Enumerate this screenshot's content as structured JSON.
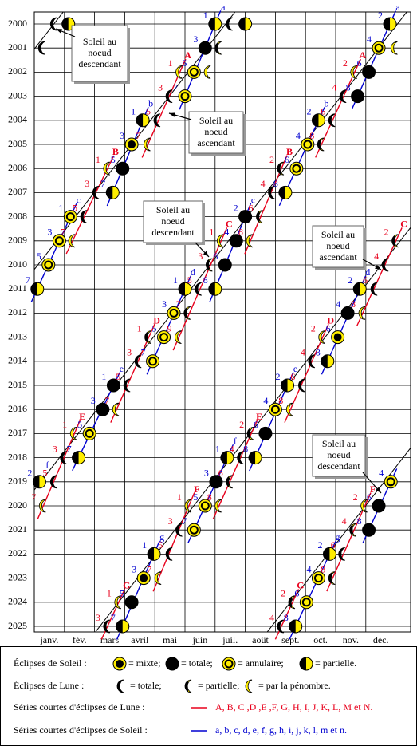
{
  "years": [
    2000,
    2001,
    2002,
    2003,
    2004,
    2005,
    2006,
    2007,
    2008,
    2009,
    2010,
    2011,
    2012,
    2013,
    2014,
    2015,
    2016,
    2017,
    2018,
    2019,
    2020,
    2021,
    2022,
    2023,
    2024,
    2025
  ],
  "months": [
    "janv.",
    "fév.",
    "mars",
    "avril",
    "mai",
    "juin",
    "juil.",
    "août",
    "sept.",
    "oct.",
    "nov.",
    "déc."
  ],
  "colors": {
    "lunar": "#e8001c",
    "solar": "#0000d0",
    "sun": "#ffee00"
  },
  "series": [
    {
      "name": "A",
      "kind": "lunar"
    },
    {
      "name": "B",
      "kind": "lunar"
    },
    {
      "name": "C",
      "kind": "lunar"
    },
    {
      "name": "D",
      "kind": "lunar"
    },
    {
      "name": "E",
      "kind": "lunar"
    },
    {
      "name": "F",
      "kind": "lunar"
    },
    {
      "name": "G",
      "kind": "lunar"
    },
    {
      "name": "a",
      "kind": "solar"
    },
    {
      "name": "b",
      "kind": "solar"
    },
    {
      "name": "c",
      "kind": "solar"
    },
    {
      "name": "d",
      "kind": "solar"
    },
    {
      "name": "e",
      "kind": "solar"
    },
    {
      "name": "f",
      "kind": "solar"
    },
    {
      "name": "g",
      "kind": "solar"
    }
  ],
  "eclipses": [
    {
      "y": 2000,
      "m": 0.67,
      "t": "L-total"
    },
    {
      "y": 2000,
      "m": 1.13,
      "t": "S-partial"
    },
    {
      "y": 2000,
      "m": 6.0,
      "t": "S-partial",
      "s": "a",
      "n": 1
    },
    {
      "y": 2000,
      "m": 6.5,
      "t": "L-total"
    },
    {
      "y": 2000,
      "m": 7.0,
      "t": "S-partial"
    },
    {
      "y": 2000,
      "m": 11.8,
      "t": "S-partial",
      "s": "a",
      "n": 2
    },
    {
      "y": 2001,
      "m": 0.27,
      "t": "L-total"
    },
    {
      "y": 2001,
      "m": 5.67,
      "t": "S-total",
      "s": "a",
      "n": 3
    },
    {
      "y": 2001,
      "m": 6.13,
      "t": "L-partial"
    },
    {
      "y": 2001,
      "m": 11.43,
      "t": "S-annular",
      "s": "a",
      "n": 4
    },
    {
      "y": 2001,
      "m": 11.97,
      "t": "L-penumbral"
    },
    {
      "y": 2002,
      "m": 4.83,
      "t": "L-penumbral",
      "s": "A",
      "n": 1
    },
    {
      "y": 2002,
      "m": 5.3,
      "t": "S-annular",
      "s": "a",
      "n": 5
    },
    {
      "y": 2002,
      "m": 5.77,
      "t": "L-penumbral"
    },
    {
      "y": 2002,
      "m": 10.63,
      "t": "L-penumbral",
      "s": "A",
      "n": 2
    },
    {
      "y": 2002,
      "m": 11.1,
      "t": "S-total",
      "s": "a",
      "n": 6
    },
    {
      "y": 2003,
      "m": 4.5,
      "t": "L-total",
      "s": "A",
      "n": 3
    },
    {
      "y": 2003,
      "m": 5.0,
      "t": "S-annular",
      "s": "a",
      "n": 7
    },
    {
      "y": 2003,
      "m": 10.27,
      "t": "L-total",
      "s": "A",
      "n": 4
    },
    {
      "y": 2003,
      "m": 10.73,
      "t": "S-total",
      "s": "a",
      "n": 8
    },
    {
      "y": 2004,
      "m": 3.6,
      "t": "S-partial",
      "s": "b",
      "n": 1
    },
    {
      "y": 2004,
      "m": 4.1,
      "t": "L-total",
      "s": "A",
      "n": 5
    },
    {
      "y": 2004,
      "m": 9.43,
      "t": "S-partial",
      "s": "b",
      "n": 2
    },
    {
      "y": 2004,
      "m": 9.9,
      "t": "L-total",
      "s": "A",
      "n": 6
    },
    {
      "y": 2005,
      "m": 3.23,
      "t": "S-hybrid",
      "s": "b",
      "n": 3
    },
    {
      "y": 2005,
      "m": 3.77,
      "t": "L-penumbral",
      "s": "A",
      "n": 7
    },
    {
      "y": 2005,
      "m": 9.07,
      "t": "S-annular",
      "s": "b",
      "n": 4
    },
    {
      "y": 2005,
      "m": 9.53,
      "t": "L-partial",
      "s": "A",
      "n": 8
    },
    {
      "y": 2006,
      "m": 2.43,
      "t": "L-penumbral",
      "s": "B",
      "n": 1
    },
    {
      "y": 2006,
      "m": 2.93,
      "t": "S-total",
      "s": "b",
      "n": 5
    },
    {
      "y": 2006,
      "m": 8.2,
      "t": "L-partial",
      "s": "B",
      "n": 2
    },
    {
      "y": 2006,
      "m": 8.7,
      "t": "S-annular",
      "s": "b",
      "n": 6
    },
    {
      "y": 2007,
      "m": 2.07,
      "t": "L-total",
      "s": "B",
      "n": 3
    },
    {
      "y": 2007,
      "m": 2.6,
      "t": "S-partial",
      "s": "b",
      "n": 7
    },
    {
      "y": 2007,
      "m": 7.9,
      "t": "L-total",
      "s": "B",
      "n": 4
    },
    {
      "y": 2007,
      "m": 8.33,
      "t": "S-partial",
      "s": "b",
      "n": 8
    },
    {
      "y": 2008,
      "m": 1.2,
      "t": "S-annular",
      "s": "c",
      "n": 1
    },
    {
      "y": 2008,
      "m": 1.67,
      "t": "L-total",
      "s": "B",
      "n": 5
    },
    {
      "y": 2008,
      "m": 7.0,
      "t": "S-total",
      "s": "c",
      "n": 2
    },
    {
      "y": 2008,
      "m": 7.5,
      "t": "L-partial",
      "s": "B",
      "n": 6
    },
    {
      "y": 2009,
      "m": 0.83,
      "t": "S-annular",
      "s": "c",
      "n": 3
    },
    {
      "y": 2009,
      "m": 1.27,
      "t": "L-penumbral",
      "s": "B",
      "n": 7
    },
    {
      "y": 2009,
      "m": 6.2,
      "t": "L-penumbral",
      "s": "C",
      "n": 1
    },
    {
      "y": 2009,
      "m": 6.7,
      "t": "S-total",
      "s": "c",
      "n": 4
    },
    {
      "y": 2009,
      "m": 7.17,
      "t": "L-penumbral",
      "s": "B",
      "n": 8
    },
    {
      "y": 2009,
      "m": 12.0,
      "t": "L-partial",
      "s": "C",
      "n": 2
    },
    {
      "y": 2010,
      "m": 0.47,
      "t": "S-annular",
      "s": "c",
      "n": 5
    },
    {
      "y": 2010,
      "m": 5.83,
      "t": "L-partial",
      "s": "C",
      "n": 3
    },
    {
      "y": 2010,
      "m": 6.33,
      "t": "S-total",
      "s": "c",
      "n": 6
    },
    {
      "y": 2010,
      "m": 11.67,
      "t": "L-total",
      "s": "C",
      "n": 4
    },
    {
      "y": 2011,
      "m": 0.1,
      "t": "S-partial",
      "s": "c",
      "n": 7
    },
    {
      "y": 2011,
      "m": 5.0,
      "t": "S-partial",
      "s": "d",
      "n": 1
    },
    {
      "y": 2011,
      "m": 5.47,
      "t": "L-total",
      "s": "C",
      "n": 5
    },
    {
      "y": 2011,
      "m": 6.0,
      "t": "S-partial",
      "s": "c",
      "n": 8
    },
    {
      "y": 2011,
      "m": 10.8,
      "t": "S-partial",
      "s": "d",
      "n": 2
    },
    {
      "y": 2011,
      "m": 11.3,
      "t": "L-total",
      "s": "C",
      "n": 6
    },
    {
      "y": 2012,
      "m": 4.63,
      "t": "S-annular",
      "s": "d",
      "n": 3
    },
    {
      "y": 2012,
      "m": 5.1,
      "t": "L-partial",
      "s": "C",
      "n": 7
    },
    {
      "y": 2012,
      "m": 10.4,
      "t": "S-total",
      "s": "d",
      "n": 4
    },
    {
      "y": 2012,
      "m": 10.9,
      "t": "L-penumbral",
      "s": "C",
      "n": 8
    },
    {
      "y": 2013,
      "m": 3.8,
      "t": "L-partial",
      "s": "D",
      "n": 1
    },
    {
      "y": 2013,
      "m": 4.3,
      "t": "S-annular",
      "s": "d",
      "n": 5
    },
    {
      "y": 2013,
      "m": 4.8,
      "t": "L-penumbral",
      "s": "C",
      "n": 9
    },
    {
      "y": 2013,
      "m": 9.57,
      "t": "L-penumbral",
      "s": "D",
      "n": 2
    },
    {
      "y": 2013,
      "m": 10.07,
      "t": "S-hybrid",
      "s": "d",
      "n": 6
    },
    {
      "y": 2014,
      "m": 3.47,
      "t": "L-total",
      "s": "D",
      "n": 3
    },
    {
      "y": 2014,
      "m": 3.93,
      "t": "S-annular",
      "s": "d",
      "n": 7
    },
    {
      "y": 2014,
      "m": 9.23,
      "t": "L-total",
      "s": "D",
      "n": 4
    },
    {
      "y": 2014,
      "m": 9.73,
      "t": "S-partial",
      "s": "d",
      "n": 8
    },
    {
      "y": 2015,
      "m": 2.63,
      "t": "S-total",
      "s": "e",
      "n": 1
    },
    {
      "y": 2015,
      "m": 3.1,
      "t": "L-total",
      "s": "D",
      "n": 5
    },
    {
      "y": 2015,
      "m": 8.4,
      "t": "S-partial",
      "s": "e",
      "n": 2
    },
    {
      "y": 2015,
      "m": 8.9,
      "t": "L-total",
      "s": "D",
      "n": 6
    },
    {
      "y": 2016,
      "m": 2.27,
      "t": "S-total",
      "s": "e",
      "n": 3
    },
    {
      "y": 2016,
      "m": 2.73,
      "t": "L-penumbral",
      "s": "D",
      "n": 7
    },
    {
      "y": 2016,
      "m": 8.0,
      "t": "S-annular",
      "s": "e",
      "n": 4
    },
    {
      "y": 2016,
      "m": 8.5,
      "t": "L-penumbral",
      "s": "D",
      "n": 8
    },
    {
      "y": 2017,
      "m": 1.33,
      "t": "L-penumbral",
      "s": "E",
      "n": 1
    },
    {
      "y": 2017,
      "m": 1.83,
      "t": "S-annular",
      "s": "e",
      "n": 5
    },
    {
      "y": 2017,
      "m": 7.2,
      "t": "L-partial",
      "s": "E",
      "n": 2
    },
    {
      "y": 2017,
      "m": 7.67,
      "t": "S-total",
      "s": "e",
      "n": 6
    },
    {
      "y": 2018,
      "m": 1.0,
      "t": "L-total",
      "s": "E",
      "n": 3
    },
    {
      "y": 2018,
      "m": 1.47,
      "t": "S-partial",
      "s": "e",
      "n": 7
    },
    {
      "y": 2018,
      "m": 6.4,
      "t": "S-partial",
      "s": "f",
      "n": 1
    },
    {
      "y": 2018,
      "m": 6.87,
      "t": "L-total",
      "s": "E",
      "n": 4
    },
    {
      "y": 2018,
      "m": 7.33,
      "t": "S-partial",
      "s": "e",
      "n": 8
    },
    {
      "y": 2019,
      "m": 0.17,
      "t": "S-partial",
      "s": "f",
      "n": 2
    },
    {
      "y": 2019,
      "m": 0.67,
      "t": "L-total",
      "s": "E",
      "n": 5
    },
    {
      "y": 2019,
      "m": 6.03,
      "t": "S-total",
      "s": "f",
      "n": 3
    },
    {
      "y": 2019,
      "m": 6.5,
      "t": "L-partial",
      "s": "E",
      "n": 6
    },
    {
      "y": 2019,
      "m": 11.83,
      "t": "S-annular",
      "s": "f",
      "n": 4
    },
    {
      "y": 2020,
      "m": 0.3,
      "t": "L-penumbral",
      "s": "E",
      "n": 7
    },
    {
      "y": 2020,
      "m": 5.13,
      "t": "L-penumbral",
      "s": "F",
      "n": 1
    },
    {
      "y": 2020,
      "m": 5.67,
      "t": "S-annular",
      "s": "f",
      "n": 5
    },
    {
      "y": 2020,
      "m": 6.13,
      "t": "L-penumbral",
      "s": "E",
      "n": 8
    },
    {
      "y": 2020,
      "m": 10.97,
      "t": "L-penumbral",
      "s": "F",
      "n": 2
    },
    {
      "y": 2020,
      "m": 11.43,
      "t": "S-total",
      "s": "f",
      "n": 6
    },
    {
      "y": 2021,
      "m": 4.83,
      "t": "L-total",
      "s": "F",
      "n": 3
    },
    {
      "y": 2021,
      "m": 5.3,
      "t": "S-annular",
      "s": "f",
      "n": 7
    },
    {
      "y": 2021,
      "m": 10.6,
      "t": "L-partial",
      "s": "F",
      "n": 4
    },
    {
      "y": 2021,
      "m": 11.1,
      "t": "S-total",
      "s": "f",
      "n": 8
    },
    {
      "y": 2022,
      "m": 3.97,
      "t": "S-partial",
      "s": "g",
      "n": 1
    },
    {
      "y": 2022,
      "m": 4.5,
      "t": "L-total",
      "s": "F",
      "n": 5
    },
    {
      "y": 2022,
      "m": 9.8,
      "t": "S-partial",
      "s": "g",
      "n": 2
    },
    {
      "y": 2022,
      "m": 10.23,
      "t": "L-total",
      "s": "F",
      "n": 6
    },
    {
      "y": 2023,
      "m": 3.63,
      "t": "S-hybrid",
      "s": "g",
      "n": 3
    },
    {
      "y": 2023,
      "m": 4.13,
      "t": "L-penumbral",
      "s": "F",
      "n": 7
    },
    {
      "y": 2023,
      "m": 9.43,
      "t": "S-annular",
      "s": "g",
      "n": 4
    },
    {
      "y": 2023,
      "m": 9.9,
      "t": "L-partial",
      "s": "F",
      "n": 8
    },
    {
      "y": 2024,
      "m": 2.8,
      "t": "L-penumbral",
      "s": "G",
      "n": 1
    },
    {
      "y": 2024,
      "m": 3.23,
      "t": "S-total",
      "s": "g",
      "n": 5
    },
    {
      "y": 2024,
      "m": 8.57,
      "t": "L-partial",
      "s": "G",
      "n": 2
    },
    {
      "y": 2024,
      "m": 9.03,
      "t": "S-annular",
      "s": "g",
      "n": 6
    },
    {
      "y": 2025,
      "m": 2.43,
      "t": "L-total",
      "s": "G",
      "n": 3
    },
    {
      "y": 2025,
      "m": 2.93,
      "t": "S-partial",
      "s": "g",
      "n": 7
    },
    {
      "y": 2025,
      "m": 8.2,
      "t": "L-total",
      "s": "G",
      "n": 4
    },
    {
      "y": 2025,
      "m": 8.67,
      "t": "S-partial",
      "s": "g",
      "n": 8
    }
  ],
  "callouts": [
    {
      "lines": [
        "Soleil au",
        "noeud",
        "descendant"
      ]
    },
    {
      "lines": [
        "Soleil au",
        "noeud",
        "ascendant"
      ]
    },
    {
      "lines": [
        "Soleil au",
        "noeud",
        "descendant"
      ]
    },
    {
      "lines": [
        "Soleil au",
        "noeud",
        "ascendant"
      ]
    },
    {
      "lines": [
        "Soleil au",
        "noeud",
        "descendant"
      ]
    }
  ],
  "legend": {
    "solar": {
      "title": "Éclipses de Soleil :",
      "items": [
        {
          "icon": "S-hybrid",
          "text": "= mixte;"
        },
        {
          "icon": "S-total",
          "text": "= totale;"
        },
        {
          "icon": "S-annular",
          "text": "=  annulaire;"
        },
        {
          "icon": "S-partial",
          "text": "= partielle."
        }
      ]
    },
    "lunar": {
      "title": "Éclipses de Lune  :",
      "items": [
        {
          "icon": "L-total",
          "text": "= totale;"
        },
        {
          "icon": "L-partial",
          "text": "= partielle;"
        },
        {
          "icon": "L-penumbral",
          "text": "= par la pénombre."
        }
      ]
    },
    "lunar_series": {
      "title": "Séries courtes d'éclipses de Lune :",
      "names": "A, B, C ,D ,E ,F, G, H, I, J, K, L, M et N."
    },
    "solar_series": {
      "title": "Séries courtes d'éclipses de Soleil :",
      "names": "a, b, c, d, e, f, g, h, i, j, k, l, m et n."
    }
  }
}
